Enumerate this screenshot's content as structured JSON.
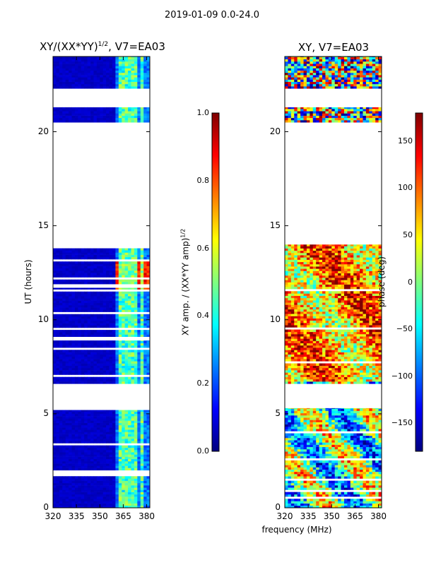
{
  "page": {
    "suptitle": "2019-01-09 0.0-24.0"
  },
  "colors": {
    "jet": [
      "#00007f",
      "#0000ff",
      "#007fff",
      "#00ffff",
      "#7fff7f",
      "#ffff00",
      "#ff7f00",
      "#ff0000",
      "#7f0000"
    ],
    "gap": "#ffffff",
    "frame": "#000000"
  },
  "chart_data": [
    {
      "type": "heatmap",
      "title": "XY/(XX*YY)",
      "title_suffix": ", V7=EA03",
      "title_sup": "1/2",
      "xlabel": "",
      "ylabel": "UT (hours)",
      "xlim": [
        320,
        382
      ],
      "ylim": [
        0,
        24
      ],
      "xticks": [
        320,
        335,
        350,
        365,
        380
      ],
      "yticks": [
        0,
        5,
        10,
        15,
        20
      ],
      "colorbar": {
        "label": "XY amp. / (XX*YY amp)",
        "label_sup": "1/2",
        "range": [
          0.0,
          1.0
        ],
        "ticks": [
          "0.0",
          "0.2",
          "0.4",
          "0.6",
          "0.8",
          "1.0"
        ]
      },
      "data_blocks_hours": [
        [
          0,
          1.8
        ],
        [
          2.0,
          5.2
        ],
        [
          6.6,
          8.9
        ],
        [
          9.1,
          11.7
        ],
        [
          11.9,
          13.8
        ],
        [
          20.5,
          21.3
        ],
        [
          22.3,
          24
        ]
      ],
      "bright_channels_mhz": [
        364,
        368,
        372,
        377
      ],
      "hot_band_hours": [
        11.5,
        13.2
      ],
      "hot_band_mhz": [
        360,
        380
      ],
      "background_value": 0.05,
      "channel_value": 0.45,
      "hot_value": 0.85
    },
    {
      "type": "heatmap",
      "title": "XY, V7=EA03",
      "xlabel": "frequency (MHz)",
      "ylabel": "",
      "xlim": [
        320,
        382
      ],
      "ylim": [
        0,
        24
      ],
      "xticks": [
        320,
        335,
        350,
        365,
        380
      ],
      "yticks": [
        0,
        5,
        10,
        15,
        20
      ],
      "colorbar": {
        "label": "phase (deg)",
        "range": [
          -180,
          180
        ],
        "ticks": [
          "−150",
          "−100",
          "−50",
          "0",
          "50",
          "100",
          "150"
        ],
        "tick_values": [
          -150,
          -100,
          -50,
          0,
          50,
          100,
          150
        ]
      },
      "data_blocks_hours": [
        [
          0,
          5.3
        ],
        [
          6.6,
          14.0
        ],
        [
          20.5,
          21.3
        ],
        [
          22.3,
          24
        ]
      ],
      "notes": "phase varies across full range; mostly red/orange in 7-14h, mixed below 5h"
    }
  ]
}
